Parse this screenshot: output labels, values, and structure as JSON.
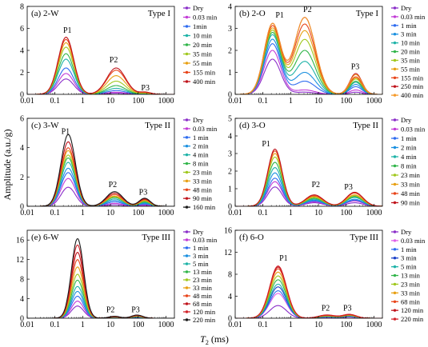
{
  "figure": {
    "ylabel": "Amplitude (a.u./g)",
    "xlabel": "T2 (ms)",
    "xlabel_main": "T",
    "xlabel_sub": "2",
    "xlabel_unit": " (ms)"
  },
  "chart_data": [
    {
      "type": "line",
      "panel": "(a) 2-W",
      "title": "(a) 2-W",
      "type_label": "Type I",
      "x_scale": "log",
      "xlim": [
        0.01,
        2000
      ],
      "ylim": [
        0,
        8
      ],
      "x_ticks": [
        "0.01",
        "0.1",
        "1",
        "10",
        "100",
        "1000"
      ],
      "y_ticks": [
        "0",
        "2",
        "4",
        "6",
        "8"
      ],
      "annotations": [
        {
          "text": "P1",
          "x": 0.28,
          "y": 5.6
        },
        {
          "text": "P2",
          "x": 13,
          "y": 2.9
        },
        {
          "text": "P3",
          "x": 180,
          "y": 0.35
        }
      ],
      "series": [
        {
          "name": "Dry",
          "color": "#8b2fc9"
        },
        {
          "name": "0.03 min",
          "color": "#c23bd6"
        },
        {
          "name": "1min",
          "color": "#2e6cf0"
        },
        {
          "name": "10 min",
          "color": "#1fb3a8"
        },
        {
          "name": "20 min",
          "color": "#31b54a"
        },
        {
          "name": "35 min",
          "color": "#a0c81e"
        },
        {
          "name": "55 min",
          "color": "#e8a013"
        },
        {
          "name": "155 min",
          "color": "#e8451a"
        },
        {
          "name": "400 min",
          "color": "#c0141c"
        }
      ],
      "peak_components": [
        {
          "center": 0.25,
          "width": 0.28,
          "values": [
            1.4,
            1.9,
            2.4,
            3.2,
            3.7,
            4.3,
            4.7,
            5.0,
            5.2
          ]
        },
        {
          "center": 16,
          "width": 0.34,
          "values": [
            0.1,
            0.2,
            0.35,
            0.55,
            0.8,
            1.2,
            1.7,
            2.2,
            2.4
          ]
        },
        {
          "center": 180,
          "width": 0.2,
          "values": [
            0.0,
            0.02,
            0.04,
            0.06,
            0.08,
            0.1,
            0.13,
            0.17,
            0.2
          ]
        }
      ]
    },
    {
      "type": "line",
      "panel": "(b) 2-O",
      "title": "(b) 2-O",
      "type_label": "Type I",
      "x_scale": "log",
      "xlim": [
        0.01,
        2000
      ],
      "ylim": [
        0,
        4
      ],
      "x_ticks": [
        "0.01",
        "0.1",
        "1",
        "10",
        "100",
        "1000"
      ],
      "y_ticks": [
        "0",
        "1",
        "2",
        "3",
        "4"
      ],
      "annotations": [
        {
          "text": "P1",
          "x": 0.4,
          "y": 3.5
        },
        {
          "text": "P2",
          "x": 4,
          "y": 3.75
        },
        {
          "text": "P3",
          "x": 210,
          "y": 1.15
        }
      ],
      "series": [
        {
          "name": "Dry",
          "color": "#8b2fc9"
        },
        {
          "name": "0.03 min",
          "color": "#c23bd6"
        },
        {
          "name": "1 min",
          "color": "#2e6cf0"
        },
        {
          "name": "3 min",
          "color": "#1a90e0"
        },
        {
          "name": "10 min",
          "color": "#1fb3a8"
        },
        {
          "name": "20 min",
          "color": "#31b54a"
        },
        {
          "name": "35 min",
          "color": "#a0c81e"
        },
        {
          "name": "55 min",
          "color": "#e8a013"
        },
        {
          "name": "155 min",
          "color": "#e8451a"
        },
        {
          "name": "250 min",
          "color": "#c0141c"
        },
        {
          "name": "400 min",
          "color": "#f59a2a"
        }
      ],
      "peak_components": [
        {
          "center": 0.22,
          "width": 0.3,
          "values": [
            1.6,
            2.0,
            2.3,
            2.5,
            2.7,
            2.8,
            2.9,
            3.0,
            3.1,
            3.2,
            3.2
          ]
        },
        {
          "center": 3.2,
          "width": 0.38,
          "values": [
            0.1,
            0.2,
            0.6,
            1.0,
            1.5,
            2.0,
            2.5,
            2.9,
            3.2,
            3.5,
            3.5
          ]
        },
        {
          "center": 220,
          "width": 0.22,
          "values": [
            0.1,
            0.2,
            0.35,
            0.45,
            0.55,
            0.6,
            0.7,
            0.75,
            0.8,
            0.95,
            0.9
          ]
        }
      ]
    },
    {
      "type": "line",
      "panel": "(c) 3-W",
      "title": "(c) 3-W",
      "type_label": "Type II",
      "x_scale": "log",
      "xlim": [
        0.01,
        2000
      ],
      "ylim": [
        0,
        6
      ],
      "x_ticks": [
        "0.01",
        "0.1",
        "1",
        "10",
        "100",
        "1000"
      ],
      "y_ticks": [
        "0",
        "2",
        "4",
        "6"
      ],
      "annotations": [
        {
          "text": "P1",
          "x": 0.24,
          "y": 4.95
        },
        {
          "text": "P2",
          "x": 12,
          "y": 1.3
        },
        {
          "text": "P3",
          "x": 150,
          "y": 0.8
        }
      ],
      "series": [
        {
          "name": "Dry",
          "color": "#8b2fc9"
        },
        {
          "name": "0.03 min",
          "color": "#c23bd6"
        },
        {
          "name": "1 min",
          "color": "#2e6cf0"
        },
        {
          "name": "2 min",
          "color": "#1a90e0"
        },
        {
          "name": "4 min",
          "color": "#1fb3a8"
        },
        {
          "name": "8 min",
          "color": "#31b54a"
        },
        {
          "name": "23 min",
          "color": "#a0c81e"
        },
        {
          "name": "33 min",
          "color": "#e8a013"
        },
        {
          "name": "48 min",
          "color": "#e8451a"
        },
        {
          "name": "90 min",
          "color": "#c0141c"
        },
        {
          "name": "160 min",
          "color": "#1a1a1a"
        }
      ],
      "peak_components": [
        {
          "center": 0.3,
          "width": 0.26,
          "values": [
            1.3,
            1.9,
            2.3,
            2.6,
            3.0,
            3.3,
            3.5,
            3.8,
            4.0,
            4.4,
            4.9
          ]
        },
        {
          "center": 14,
          "width": 0.3,
          "values": [
            0.1,
            0.2,
            0.3,
            0.4,
            0.5,
            0.6,
            0.65,
            0.7,
            0.8,
            0.9,
            1.0
          ]
        },
        {
          "center": 170,
          "width": 0.2,
          "values": [
            0.05,
            0.1,
            0.15,
            0.2,
            0.25,
            0.3,
            0.35,
            0.4,
            0.45,
            0.5,
            0.55
          ]
        }
      ]
    },
    {
      "type": "line",
      "panel": "(d) 3-O",
      "title": "(d) 3-O",
      "type_label": "Type II",
      "x_scale": "log",
      "xlim": [
        0.01,
        2000
      ],
      "ylim": [
        0,
        5
      ],
      "x_ticks": [
        "0.01",
        "0.1",
        "1",
        "10",
        "100",
        "1000"
      ],
      "y_ticks": [
        "0",
        "1",
        "2",
        "3",
        "4",
        "5"
      ],
      "annotations": [
        {
          "text": "P1",
          "x": 0.13,
          "y": 3.4
        },
        {
          "text": "P2",
          "x": 8,
          "y": 1.1
        },
        {
          "text": "P3",
          "x": 120,
          "y": 0.95
        }
      ],
      "series": [
        {
          "name": "Dry",
          "color": "#8b2fc9"
        },
        {
          "name": "0.03 min",
          "color": "#c23bd6"
        },
        {
          "name": "1 min",
          "color": "#2e6cf0"
        },
        {
          "name": "2 min",
          "color": "#1a90e0"
        },
        {
          "name": "4 min",
          "color": "#1fb3a8"
        },
        {
          "name": "8 min",
          "color": "#31b54a"
        },
        {
          "name": "23 min",
          "color": "#a0c81e"
        },
        {
          "name": "33 min",
          "color": "#e8a013"
        },
        {
          "name": "48 min",
          "color": "#e8451a"
        },
        {
          "name": "90 min",
          "color": "#c0141c"
        }
      ],
      "peak_components": [
        {
          "center": 0.27,
          "width": 0.26,
          "values": [
            1.1,
            1.4,
            1.6,
            1.9,
            2.2,
            2.5,
            2.8,
            3.0,
            3.15,
            3.25
          ]
        },
        {
          "center": 7,
          "width": 0.32,
          "values": [
            0.2,
            0.25,
            0.3,
            0.35,
            0.4,
            0.45,
            0.5,
            0.55,
            0.6,
            0.65
          ]
        },
        {
          "center": 200,
          "width": 0.3,
          "values": [
            0.2,
            0.3,
            0.35,
            0.4,
            0.5,
            0.55,
            0.6,
            0.65,
            0.75,
            0.8
          ]
        }
      ]
    },
    {
      "type": "line",
      "panel": "(e) 6-W",
      "title": "(e) 6-W",
      "type_label": "Type III",
      "x_scale": "log",
      "xlim": [
        0.01,
        2000
      ],
      "ylim": [
        0,
        18
      ],
      "x_ticks": [
        "0.01",
        "0.1",
        "1",
        "10",
        "100",
        "1000"
      ],
      "y_ticks": [
        "0",
        "4",
        "8",
        "12",
        "16"
      ],
      "annotations": [
        {
          "text": "P2",
          "x": 10,
          "y": 1.2
        },
        {
          "text": "P3",
          "x": 80,
          "y": 1.2
        }
      ],
      "series": [
        {
          "name": "Dry",
          "color": "#8b2fc9"
        },
        {
          "name": "0.03 min",
          "color": "#c23bd6"
        },
        {
          "name": "1 min",
          "color": "#2e6cf0"
        },
        {
          "name": "3 min",
          "color": "#1a90e0"
        },
        {
          "name": "5 min",
          "color": "#1fb3a8"
        },
        {
          "name": "13 min",
          "color": "#31b54a"
        },
        {
          "name": "23 min",
          "color": "#a0c81e"
        },
        {
          "name": "33 min",
          "color": "#e8a013"
        },
        {
          "name": "48 min",
          "color": "#e8451a"
        },
        {
          "name": "68 min",
          "color": "#c0141c"
        },
        {
          "name": "120 min",
          "color": "#d2232a"
        },
        {
          "name": "220 min",
          "color": "#1a1a1a"
        }
      ],
      "peak_components": [
        {
          "center": 0.65,
          "width": 0.22,
          "values": [
            2.5,
            3.5,
            4.5,
            5.5,
            6.5,
            7.8,
            9.0,
            10.5,
            12.0,
            13.5,
            15.0,
            16.3
          ]
        },
        {
          "center": 14,
          "width": 0.2,
          "values": [
            0.1,
            0.12,
            0.15,
            0.18,
            0.2,
            0.22,
            0.25,
            0.28,
            0.3,
            0.32,
            0.35,
            0.4
          ]
        },
        {
          "center": 90,
          "width": 0.2,
          "values": [
            0.1,
            0.15,
            0.2,
            0.25,
            0.3,
            0.35,
            0.4,
            0.45,
            0.5,
            0.55,
            0.6,
            0.65
          ]
        }
      ]
    },
    {
      "type": "line",
      "panel": "(f) 6-O",
      "title": "(f) 6-O",
      "type_label": "Type III",
      "x_scale": "log",
      "xlim": [
        0.01,
        2000
      ],
      "ylim": [
        0,
        16
      ],
      "x_ticks": [
        "0.01",
        "0.1",
        "1",
        "10",
        "100",
        "1000"
      ],
      "y_ticks": [
        "0",
        "4",
        "8",
        "12",
        "16"
      ],
      "annotations": [
        {
          "text": "P1",
          "x": 0.55,
          "y": 10.5
        },
        {
          "text": "P2",
          "x": 18,
          "y": 1.4
        },
        {
          "text": "P3",
          "x": 110,
          "y": 1.4
        }
      ],
      "series": [
        {
          "name": "Dry",
          "color": "#8b2fc9"
        },
        {
          "name": "0.03 min",
          "color": "#e060e8"
        },
        {
          "name": "1 min",
          "color": "#2e6cf0"
        },
        {
          "name": "3 min",
          "color": "#1a40c8"
        },
        {
          "name": "5 min",
          "color": "#1fb3a8"
        },
        {
          "name": "13 min",
          "color": "#31b54a"
        },
        {
          "name": "23 min",
          "color": "#a0c81e"
        },
        {
          "name": "33 min",
          "color": "#e8a013"
        },
        {
          "name": "68 min",
          "color": "#e8451a"
        },
        {
          "name": "120 min",
          "color": "#c0141c"
        },
        {
          "name": "220 min",
          "color": "#d2232a"
        }
      ],
      "peak_components": [
        {
          "center": 0.35,
          "width": 0.3,
          "values": [
            2.3,
            4.5,
            5.0,
            5.7,
            6.2,
            7.0,
            7.7,
            8.4,
            9.0,
            9.3,
            9.5
          ]
        },
        {
          "center": 20,
          "width": 0.3,
          "values": [
            0.1,
            0.15,
            0.2,
            0.25,
            0.3,
            0.35,
            0.4,
            0.45,
            0.5,
            0.55,
            0.6
          ]
        },
        {
          "center": 130,
          "width": 0.25,
          "values": [
            0.2,
            0.25,
            0.3,
            0.35,
            0.4,
            0.45,
            0.5,
            0.55,
            0.6,
            0.65,
            0.7
          ]
        }
      ]
    }
  ]
}
